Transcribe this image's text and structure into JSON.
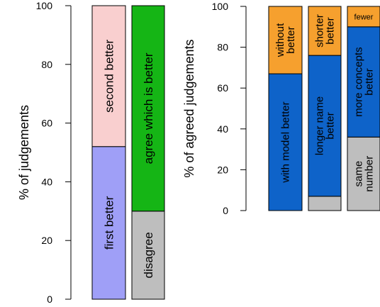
{
  "chart_data": [
    {
      "type": "bar",
      "stacked": true,
      "ylabel": "% of judgements",
      "ylim": [
        0,
        100
      ],
      "yticks": [
        "0",
        "20",
        "40",
        "60",
        "80",
        "100"
      ],
      "bars": [
        {
          "segments": [
            {
              "label": "first better",
              "value": 52,
              "color": "#9f9ff7"
            },
            {
              "label": "second better",
              "value": 48,
              "color": "#f9cfcf"
            }
          ]
        },
        {
          "segments": [
            {
              "label": "disagree",
              "value": 30,
              "color": "#bebebe"
            },
            {
              "label": "agree which is better",
              "value": 70,
              "color": "#15b515"
            }
          ]
        }
      ]
    },
    {
      "type": "bar",
      "stacked": true,
      "ylabel": "% of agreed judgements",
      "ylim": [
        0,
        100
      ],
      "yticks": [
        "0",
        "20",
        "40",
        "60",
        "80",
        "100"
      ],
      "bars": [
        {
          "segments": [
            {
              "label": "with model better",
              "value": 67,
              "color": "#0e63c9"
            },
            {
              "label": "without better",
              "value": 33,
              "color": "#f6a02e"
            }
          ]
        },
        {
          "segments": [
            {
              "label": "",
              "value": 7,
              "color": "#bebebe"
            },
            {
              "label": "longer name better",
              "value": 69,
              "color": "#0e63c9"
            },
            {
              "label": "shorter better",
              "value": 24,
              "color": "#f6a02e"
            }
          ]
        },
        {
          "segments": [
            {
              "label": "same number",
              "value": 36,
              "color": "#bebebe"
            },
            {
              "label": "more concepts better",
              "value": 54,
              "color": "#0e63c9"
            },
            {
              "label": "fewer",
              "value": 10,
              "color": "#f6a02e"
            }
          ]
        }
      ]
    }
  ]
}
